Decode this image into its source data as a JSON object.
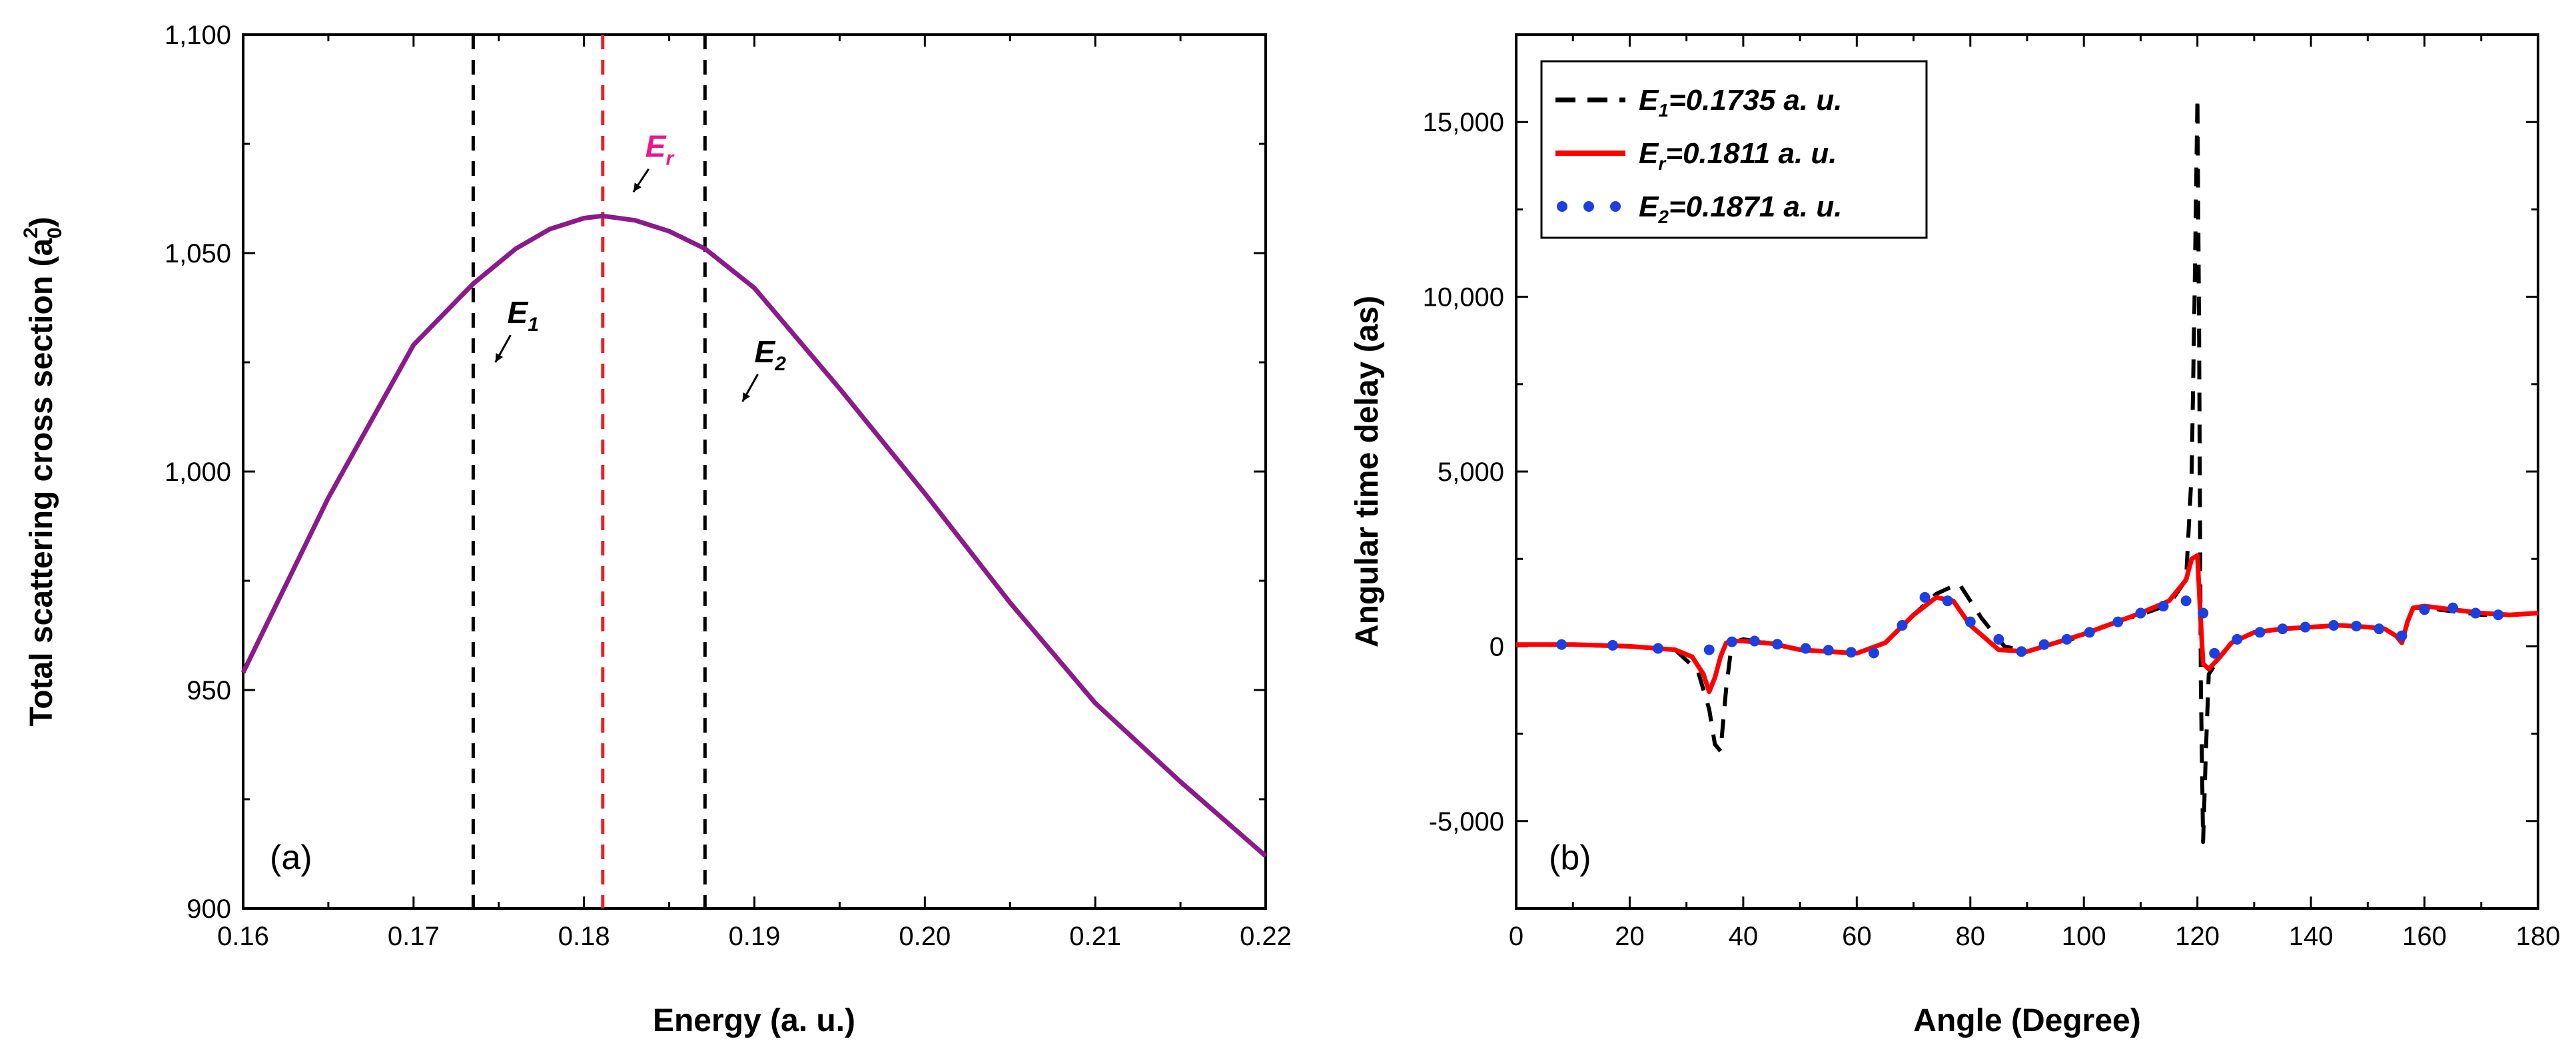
{
  "chart_data": [
    {
      "type": "line",
      "panel_label": "(a)",
      "xlabel": "Energy (a. u.)",
      "ylabel": "Total scattering cross section (a",
      "ylabel_sup": "2",
      "ylabel_sub": "0",
      "ylabel_end": ")",
      "xlim": [
        0.16,
        0.22
      ],
      "ylim": [
        900,
        1100
      ],
      "xticks": [
        0.16,
        0.17,
        0.18,
        0.19,
        0.2,
        0.21,
        0.22
      ],
      "xtick_labels": [
        "0.16",
        "0.17",
        "0.18",
        "0.19",
        "0.20",
        "0.21",
        "0.22"
      ],
      "yticks": [
        900,
        950,
        1000,
        1050,
        1100
      ],
      "ytick_labels": [
        "900",
        "950",
        "1,000",
        "1,050",
        "1,100"
      ],
      "grid": false,
      "series": [
        {
          "color": "#8B1A8B",
          "x": [
            0.16,
            0.165,
            0.17,
            0.1735,
            0.176,
            0.178,
            0.18,
            0.1811,
            0.183,
            0.185,
            0.1871,
            0.19,
            0.195,
            0.2,
            0.205,
            0.21,
            0.215,
            0.22
          ],
          "y": [
            954,
            994,
            1029,
            1043,
            1051,
            1055.5,
            1058,
            1058.5,
            1057.5,
            1055,
            1051,
            1042,
            1019,
            995,
            970,
            947,
            929,
            912
          ]
        }
      ],
      "vlines": [
        {
          "x": 0.1735,
          "color": "#000000",
          "style": "dashed"
        },
        {
          "x": 0.1811,
          "color": "#E8202A",
          "style": "dashed"
        },
        {
          "x": 0.1871,
          "color": "#000000",
          "style": "dashed"
        }
      ],
      "annotations": [
        {
          "label": "E",
          "sub": "1",
          "color": "#000000",
          "x": 0.1755,
          "y": 1034,
          "arrow_to": [
            0.1748,
            1025
          ]
        },
        {
          "label": "E",
          "sub": "r",
          "color": "#E8188C",
          "x": 0.1836,
          "y": 1072,
          "arrow_to": [
            0.1829,
            1064
          ]
        },
        {
          "label": "E",
          "sub": "2",
          "color": "#000000",
          "x": 0.19,
          "y": 1025,
          "arrow_to": [
            0.1893,
            1016
          ]
        }
      ]
    },
    {
      "type": "line",
      "panel_label": "(b)",
      "xlabel": "Angle (Degree)",
      "ylabel": "Angular time delay (as)",
      "xlim": [
        0,
        180
      ],
      "ylim": [
        -7500,
        17500
      ],
      "xticks": [
        0,
        20,
        40,
        60,
        80,
        100,
        120,
        140,
        160,
        180
      ],
      "xtick_labels": [
        "0",
        "20",
        "40",
        "60",
        "80",
        "100",
        "120",
        "140",
        "160",
        "180"
      ],
      "yticks": [
        -5000,
        0,
        5000,
        10000,
        15000
      ],
      "ytick_labels": [
        "-5,000",
        "0",
        "5,000",
        "10,000",
        "15,000"
      ],
      "grid": false,
      "legend_placement": "top-left",
      "series": [
        {
          "name": "E",
          "name_sub": "1",
          "name_rest": "=0.1735 a. u.",
          "color": "#000000",
          "style": "dashed",
          "x": [
            0,
            10,
            20,
            28,
            32,
            34,
            35,
            36,
            37,
            38,
            40,
            45,
            50,
            55,
            60,
            65,
            70,
            74,
            78,
            82,
            86,
            90,
            95,
            100,
            105,
            110,
            115,
            118,
            119,
            119.5,
            120,
            120.3,
            120.6,
            121,
            121.5,
            122,
            124,
            126,
            130,
            135,
            140,
            145,
            150,
            153,
            155,
            156,
            157,
            158,
            160,
            165,
            170,
            175,
            180
          ],
          "y": [
            50,
            40,
            0,
            -100,
            -700,
            -1800,
            -2800,
            -3000,
            -1200,
            100,
            200,
            80,
            -100,
            -150,
            -200,
            100,
            900,
            1500,
            1800,
            800,
            0,
            -150,
            100,
            300,
            700,
            900,
            1200,
            1900,
            5000,
            10000,
            15700,
            9000,
            -1000,
            -5600,
            -3000,
            -800,
            -300,
            100,
            400,
            500,
            550,
            600,
            550,
            500,
            300,
            100,
            700,
            1100,
            1100,
            1000,
            900,
            900,
            950
          ]
        },
        {
          "name": "E",
          "name_sub": "r",
          "name_rest": "=0.1811 a. u.",
          "color": "#FF0000",
          "style": "solid",
          "x": [
            0,
            10,
            20,
            28,
            31,
            33,
            34,
            35,
            36,
            37,
            38,
            40,
            45,
            50,
            55,
            60,
            65,
            70,
            74,
            77,
            80,
            85,
            90,
            95,
            100,
            105,
            110,
            115,
            118,
            119,
            120,
            120.5,
            121,
            122,
            124,
            126,
            130,
            135,
            140,
            145,
            150,
            153,
            155,
            156,
            157,
            158,
            160,
            165,
            170,
            175,
            180
          ],
          "y": [
            50,
            50,
            0,
            -100,
            -300,
            -800,
            -1300,
            -900,
            -300,
            100,
            150,
            150,
            80,
            -100,
            -150,
            -200,
            100,
            900,
            1400,
            1300,
            600,
            -100,
            -150,
            100,
            350,
            650,
            950,
            1300,
            1900,
            2500,
            2600,
            1000,
            -500,
            -650,
            -300,
            100,
            400,
            500,
            550,
            600,
            550,
            500,
            300,
            100,
            700,
            1100,
            1150,
            1050,
            950,
            900,
            950
          ]
        },
        {
          "name": "E",
          "name_sub": "2",
          "name_rest": "=0.1871 a. u.",
          "color": "#1E3FE0",
          "style": "dotted",
          "x": [
            8,
            17,
            25,
            34,
            38,
            42,
            46,
            51,
            55,
            59,
            63,
            68,
            72,
            76,
            80,
            85,
            89,
            93,
            97,
            101,
            106,
            110,
            114,
            118,
            121,
            123,
            127,
            131,
            135,
            139,
            144,
            148,
            152,
            156,
            160,
            165,
            169,
            173
          ],
          "y": [
            50,
            30,
            -60,
            -100,
            130,
            150,
            60,
            -60,
            -110,
            -170,
            -190,
            600,
            1400,
            1300,
            700,
            200,
            -150,
            50,
            200,
            400,
            700,
            950,
            1150,
            1300,
            950,
            -200,
            200,
            400,
            500,
            550,
            600,
            580,
            500,
            300,
            1050,
            1100,
            950,
            900
          ]
        }
      ]
    }
  ]
}
